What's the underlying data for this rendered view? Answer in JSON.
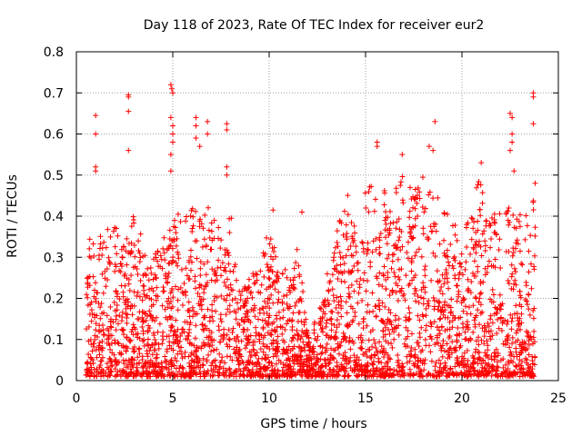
{
  "chart_data": {
    "type": "scatter",
    "title": "Day 118 of 2023, Rate Of TEC Index for receiver eur2",
    "xlabel": "GPS time / hours",
    "ylabel": "ROTI / TECUs",
    "xlim": [
      0,
      25
    ],
    "ylim": [
      0,
      0.8
    ],
    "x_ticks": [
      "0",
      "5",
      "10",
      "15",
      "20",
      "25"
    ],
    "y_ticks": [
      "0",
      "0.1",
      "0.2",
      "0.3",
      "0.4",
      "0.5",
      "0.6",
      "0.7",
      "0.8"
    ],
    "grid": true,
    "legend": "none",
    "marker": "plus",
    "series_color": "#ff0000",
    "series": [
      {
        "envelope": [
          {
            "x": 0.5,
            "y": 0.4
          },
          {
            "x": 1.0,
            "y": 0.36
          },
          {
            "x": 1.5,
            "y": 0.35
          },
          {
            "x": 2.0,
            "y": 0.4
          },
          {
            "x": 2.5,
            "y": 0.32
          },
          {
            "x": 3.0,
            "y": 0.4
          },
          {
            "x": 3.5,
            "y": 0.35
          },
          {
            "x": 4.0,
            "y": 0.32
          },
          {
            "x": 4.5,
            "y": 0.35
          },
          {
            "x": 5.0,
            "y": 0.4
          },
          {
            "x": 5.5,
            "y": 0.4
          },
          {
            "x": 6.0,
            "y": 0.42
          },
          {
            "x": 6.5,
            "y": 0.4
          },
          {
            "x": 7.0,
            "y": 0.45
          },
          {
            "x": 7.5,
            "y": 0.35
          },
          {
            "x": 8.0,
            "y": 0.4
          },
          {
            "x": 8.5,
            "y": 0.2
          },
          {
            "x": 9.0,
            "y": 0.25
          },
          {
            "x": 9.5,
            "y": 0.28
          },
          {
            "x": 10.0,
            "y": 0.38
          },
          {
            "x": 10.5,
            "y": 0.3
          },
          {
            "x": 11.0,
            "y": 0.25
          },
          {
            "x": 11.5,
            "y": 0.32
          },
          {
            "x": 12.0,
            "y": 0.1
          },
          {
            "x": 12.5,
            "y": 0.15
          },
          {
            "x": 13.0,
            "y": 0.25
          },
          {
            "x": 13.5,
            "y": 0.35
          },
          {
            "x": 14.0,
            "y": 0.45
          },
          {
            "x": 14.5,
            "y": 0.4
          },
          {
            "x": 15.0,
            "y": 0.5
          },
          {
            "x": 15.5,
            "y": 0.45
          },
          {
            "x": 16.0,
            "y": 0.5
          },
          {
            "x": 16.5,
            "y": 0.45
          },
          {
            "x": 17.0,
            "y": 0.5
          },
          {
            "x": 17.5,
            "y": 0.45
          },
          {
            "x": 18.0,
            "y": 0.5
          },
          {
            "x": 18.5,
            "y": 0.45
          },
          {
            "x": 19.0,
            "y": 0.45
          },
          {
            "x": 19.5,
            "y": 0.38
          },
          {
            "x": 20.0,
            "y": 0.35
          },
          {
            "x": 20.5,
            "y": 0.42
          },
          {
            "x": 21.0,
            "y": 0.5
          },
          {
            "x": 21.5,
            "y": 0.4
          },
          {
            "x": 22.0,
            "y": 0.4
          },
          {
            "x": 22.5,
            "y": 0.42
          },
          {
            "x": 23.0,
            "y": 0.4
          },
          {
            "x": 23.5,
            "y": 0.4
          },
          {
            "x": 23.8,
            "y": 0.45
          }
        ],
        "outliers": [
          {
            "x": 1.0,
            "y": 0.645
          },
          {
            "x": 1.0,
            "y": 0.6
          },
          {
            "x": 1.0,
            "y": 0.52
          },
          {
            "x": 1.0,
            "y": 0.51
          },
          {
            "x": 2.7,
            "y": 0.695
          },
          {
            "x": 2.7,
            "y": 0.69
          },
          {
            "x": 2.7,
            "y": 0.655
          },
          {
            "x": 2.7,
            "y": 0.56
          },
          {
            "x": 4.9,
            "y": 0.72
          },
          {
            "x": 4.95,
            "y": 0.71
          },
          {
            "x": 5.0,
            "y": 0.7
          },
          {
            "x": 4.9,
            "y": 0.64
          },
          {
            "x": 5.0,
            "y": 0.62
          },
          {
            "x": 5.0,
            "y": 0.6
          },
          {
            "x": 5.0,
            "y": 0.58
          },
          {
            "x": 4.9,
            "y": 0.55
          },
          {
            "x": 4.9,
            "y": 0.51
          },
          {
            "x": 6.2,
            "y": 0.64
          },
          {
            "x": 6.2,
            "y": 0.62
          },
          {
            "x": 6.2,
            "y": 0.59
          },
          {
            "x": 6.4,
            "y": 0.57
          },
          {
            "x": 6.8,
            "y": 0.63
          },
          {
            "x": 6.8,
            "y": 0.6
          },
          {
            "x": 7.8,
            "y": 0.625
          },
          {
            "x": 7.8,
            "y": 0.61
          },
          {
            "x": 7.8,
            "y": 0.52
          },
          {
            "x": 7.8,
            "y": 0.5
          },
          {
            "x": 10.2,
            "y": 0.415
          },
          {
            "x": 11.7,
            "y": 0.41
          },
          {
            "x": 15.6,
            "y": 0.58
          },
          {
            "x": 15.6,
            "y": 0.57
          },
          {
            "x": 16.9,
            "y": 0.55
          },
          {
            "x": 18.3,
            "y": 0.57
          },
          {
            "x": 18.5,
            "y": 0.56
          },
          {
            "x": 18.6,
            "y": 0.63
          },
          {
            "x": 21.0,
            "y": 0.53
          },
          {
            "x": 22.5,
            "y": 0.65
          },
          {
            "x": 22.6,
            "y": 0.64
          },
          {
            "x": 22.6,
            "y": 0.6
          },
          {
            "x": 22.6,
            "y": 0.58
          },
          {
            "x": 22.5,
            "y": 0.56
          },
          {
            "x": 22.7,
            "y": 0.51
          },
          {
            "x": 23.7,
            "y": 0.7
          },
          {
            "x": 23.7,
            "y": 0.69
          },
          {
            "x": 23.7,
            "y": 0.625
          },
          {
            "x": 23.8,
            "y": 0.48
          }
        ]
      }
    ]
  }
}
